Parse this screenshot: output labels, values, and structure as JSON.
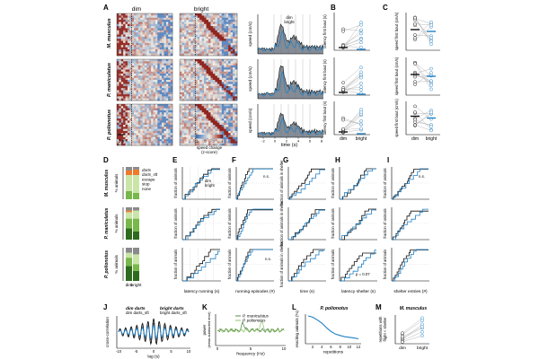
{
  "colors": {
    "dim": "#111111",
    "bright": "#1f7fc4",
    "heat_low": "#3b6fb6",
    "heat_mid": "#f2efe6",
    "heat_high": "#8b1a14",
    "grey_fill": "#5c6672",
    "shade": "#e9e9e9",
    "green_dark": "#2f6b1f",
    "green_mid": "#78b84a",
    "green_light": "#c9e5a8",
    "green_pale": "#e6f2d6",
    "orange": "#f07a2a",
    "grey_none": "#8a8a8a"
  },
  "panels": {
    "A": "A",
    "B": "B",
    "C": "C",
    "D": "D",
    "E": "E",
    "F": "F",
    "G": "G",
    "H": "H",
    "I": "I",
    "J": "J",
    "K": "K",
    "L": "L",
    "M": "M"
  },
  "species": [
    "M. musculus",
    "P. maniculatus",
    "P. polionotus"
  ],
  "panelA": {
    "dim": "dim",
    "bright": "bright",
    "scale": "3 s",
    "ylabel": "speed (cm/s)",
    "legend_dim": "dim",
    "legend_bright": "bright",
    "xlabel": "time (s)",
    "xticks": [
      "-2",
      "0",
      "2",
      "4",
      "6",
      "8"
    ],
    "colorbar_label": "speed change\n(z-score)"
  },
  "panelB": {
    "ylabel": "latency first bout (s)",
    "x_dim": "dim",
    "x_bright": "bright"
  },
  "panelC": {
    "ylabel": "speed first bout (cm/s)",
    "x_dim": "dim",
    "x_bright": "bright"
  },
  "panelD": {
    "ylabel": "% animals",
    "legend": [
      "darts",
      "darts_sft",
      "escape",
      "stop",
      "none"
    ],
    "x_dim": "dim",
    "x_bright": "bright"
  },
  "panelE": {
    "ylabel": "fraction of animals",
    "xlabel": "latency running (s)",
    "legend_dim": "dim",
    "legend_bright": "bright"
  },
  "panelF": {
    "ylabel": "fraction of animals",
    "xlabel": "running episodes (#)",
    "ns": "n.s."
  },
  "panelG": {
    "ylabel": "fraction of animals\nin shelter",
    "xlabel": "time (s)"
  },
  "panelH": {
    "ylabel": "fraction of animals",
    "xlabel": "latency shelter (s)",
    "note": "p = 0.07"
  },
  "panelI": {
    "ylabel": "fraction of animals",
    "xlabel": "shelter entries (#)",
    "ns": "n.s."
  },
  "panelJ": {
    "legend_dim_darts": "dim darts",
    "legend_dim_sft": "dim darts_sft",
    "legend_bright_darts": "bright darts",
    "legend_bright_sft": "bright darts_sft",
    "ylabel": "cross-correlation",
    "xlabel": "lag (s)",
    "xticks": [
      "-10",
      "-5",
      "0",
      "5",
      "10"
    ]
  },
  "panelK": {
    "legend1": "P. maniculatus",
    "legend2": "P. polionotus",
    "ylabel": "power\n(mean-subtracted error)",
    "xlabel": "frequency (Hz)",
    "xticks": [
      "0",
      "5",
      "10"
    ]
  },
  "panelL": {
    "title": "P. polionotus",
    "ylabel": "reacting animals (%)",
    "xlabel": "repetitions",
    "xticks": [
      "2",
      "4",
      "6",
      "8",
      "10",
      "12"
    ]
  },
  "panelM": {
    "title": "M. musculus",
    "ylabel": "repetitions with\nflight < shelter",
    "x_dim": "dim",
    "x_bright": "bright"
  }
}
